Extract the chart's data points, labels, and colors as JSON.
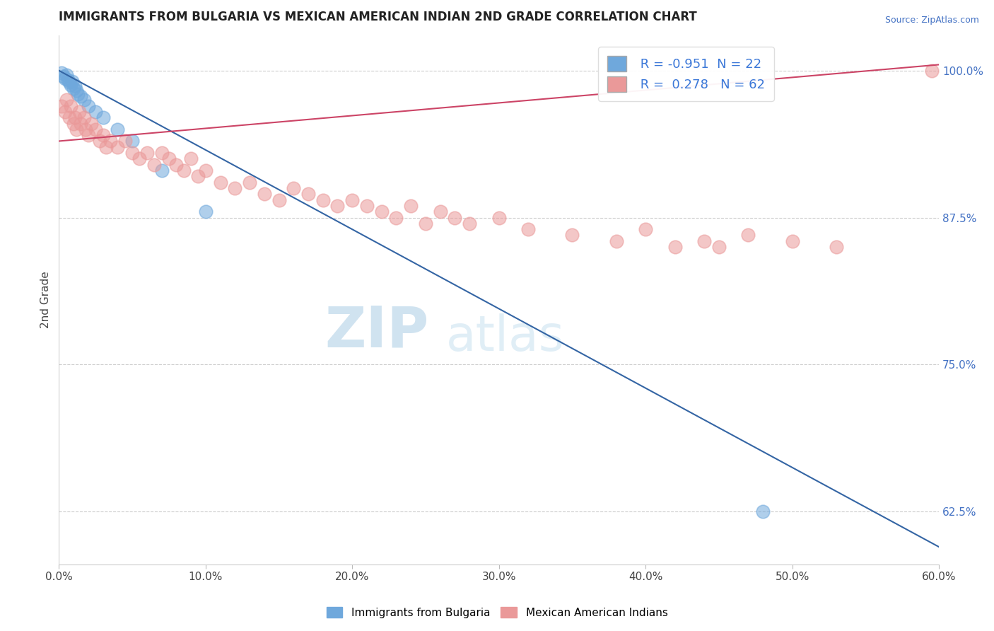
{
  "title": "IMMIGRANTS FROM BULGARIA VS MEXICAN AMERICAN INDIAN 2ND GRADE CORRELATION CHART",
  "source": "Source: ZipAtlas.com",
  "ylabel": "2nd Grade",
  "xlabel_vals": [
    0.0,
    10.0,
    20.0,
    30.0,
    40.0,
    50.0,
    60.0
  ],
  "xlim": [
    0.0,
    60.0
  ],
  "ylim": [
    58.0,
    103.0
  ],
  "yticks": [
    100.0,
    87.5,
    75.0,
    62.5
  ],
  "yticklabels": [
    "100.0%",
    "87.5%",
    "75.0%",
    "62.5%"
  ],
  "blue_color": "#6fa8dc",
  "blue_edge_color": "#4a86c8",
  "pink_color": "#ea9999",
  "pink_edge_color": "#d47070",
  "blue_line_color": "#3465a4",
  "pink_line_color": "#cc4466",
  "R_blue": -0.951,
  "N_blue": 22,
  "R_pink": 0.278,
  "N_pink": 62,
  "watermark_zip": "ZIP",
  "watermark_atlas": "atlas",
  "legend_blue": "Immigrants from Bulgaria",
  "legend_pink": "Mexican American Indians",
  "blue_scatter_x": [
    0.2,
    0.3,
    0.4,
    0.5,
    0.6,
    0.7,
    0.8,
    0.9,
    1.0,
    1.1,
    1.2,
    1.3,
    1.5,
    1.7,
    2.0,
    2.5,
    3.0,
    4.0,
    5.0,
    7.0,
    10.0,
    48.0
  ],
  "blue_scatter_y": [
    99.8,
    99.5,
    99.3,
    99.6,
    99.2,
    99.0,
    98.8,
    99.1,
    98.5,
    98.7,
    98.3,
    98.0,
    97.8,
    97.5,
    97.0,
    96.5,
    96.0,
    95.0,
    94.0,
    91.5,
    88.0,
    62.5
  ],
  "pink_scatter_x": [
    0.2,
    0.4,
    0.5,
    0.7,
    0.8,
    1.0,
    1.1,
    1.2,
    1.4,
    1.5,
    1.7,
    1.8,
    2.0,
    2.2,
    2.5,
    2.8,
    3.0,
    3.2,
    3.5,
    4.0,
    4.5,
    5.0,
    5.5,
    6.0,
    6.5,
    7.0,
    7.5,
    8.0,
    8.5,
    9.0,
    9.5,
    10.0,
    11.0,
    12.0,
    13.0,
    14.0,
    15.0,
    16.0,
    17.0,
    18.0,
    19.0,
    20.0,
    21.0,
    22.0,
    23.0,
    24.0,
    25.0,
    26.0,
    27.0,
    28.0,
    30.0,
    32.0,
    35.0,
    38.0,
    40.0,
    42.0,
    44.0,
    45.0,
    47.0,
    50.0,
    53.0,
    59.5
  ],
  "pink_scatter_y": [
    97.0,
    96.5,
    97.5,
    96.0,
    97.0,
    95.5,
    96.0,
    95.0,
    96.5,
    95.5,
    96.0,
    95.0,
    94.5,
    95.5,
    95.0,
    94.0,
    94.5,
    93.5,
    94.0,
    93.5,
    94.0,
    93.0,
    92.5,
    93.0,
    92.0,
    93.0,
    92.5,
    92.0,
    91.5,
    92.5,
    91.0,
    91.5,
    90.5,
    90.0,
    90.5,
    89.5,
    89.0,
    90.0,
    89.5,
    89.0,
    88.5,
    89.0,
    88.5,
    88.0,
    87.5,
    88.5,
    87.0,
    88.0,
    87.5,
    87.0,
    87.5,
    86.5,
    86.0,
    85.5,
    86.5,
    85.0,
    85.5,
    85.0,
    86.0,
    85.5,
    85.0,
    100.0
  ]
}
